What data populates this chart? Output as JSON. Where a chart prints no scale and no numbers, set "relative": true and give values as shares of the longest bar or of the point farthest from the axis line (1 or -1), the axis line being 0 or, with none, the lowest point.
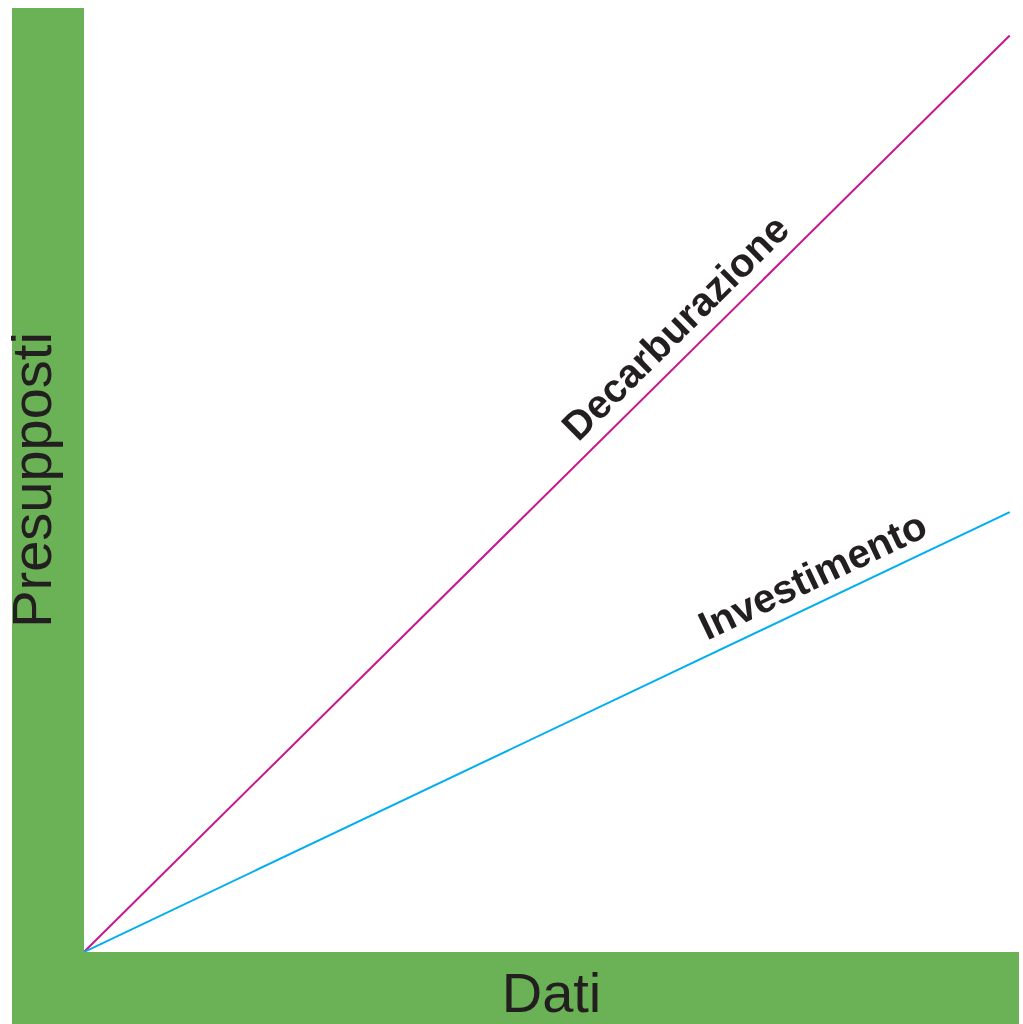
{
  "chart_data": {
    "type": "line",
    "relative": true,
    "xlabel": "Dati",
    "ylabel": "Presupposti",
    "categories": [
      null,
      null
    ],
    "series": [
      {
        "name": "Decarburazione",
        "color": "#c8168c",
        "values": [
          0,
          1
        ]
      },
      {
        "name": "Investimento",
        "color": "#00aeef",
        "values": [
          0,
          0.48
        ]
      }
    ],
    "legend": false,
    "grid": false,
    "marker": "none"
  }
}
